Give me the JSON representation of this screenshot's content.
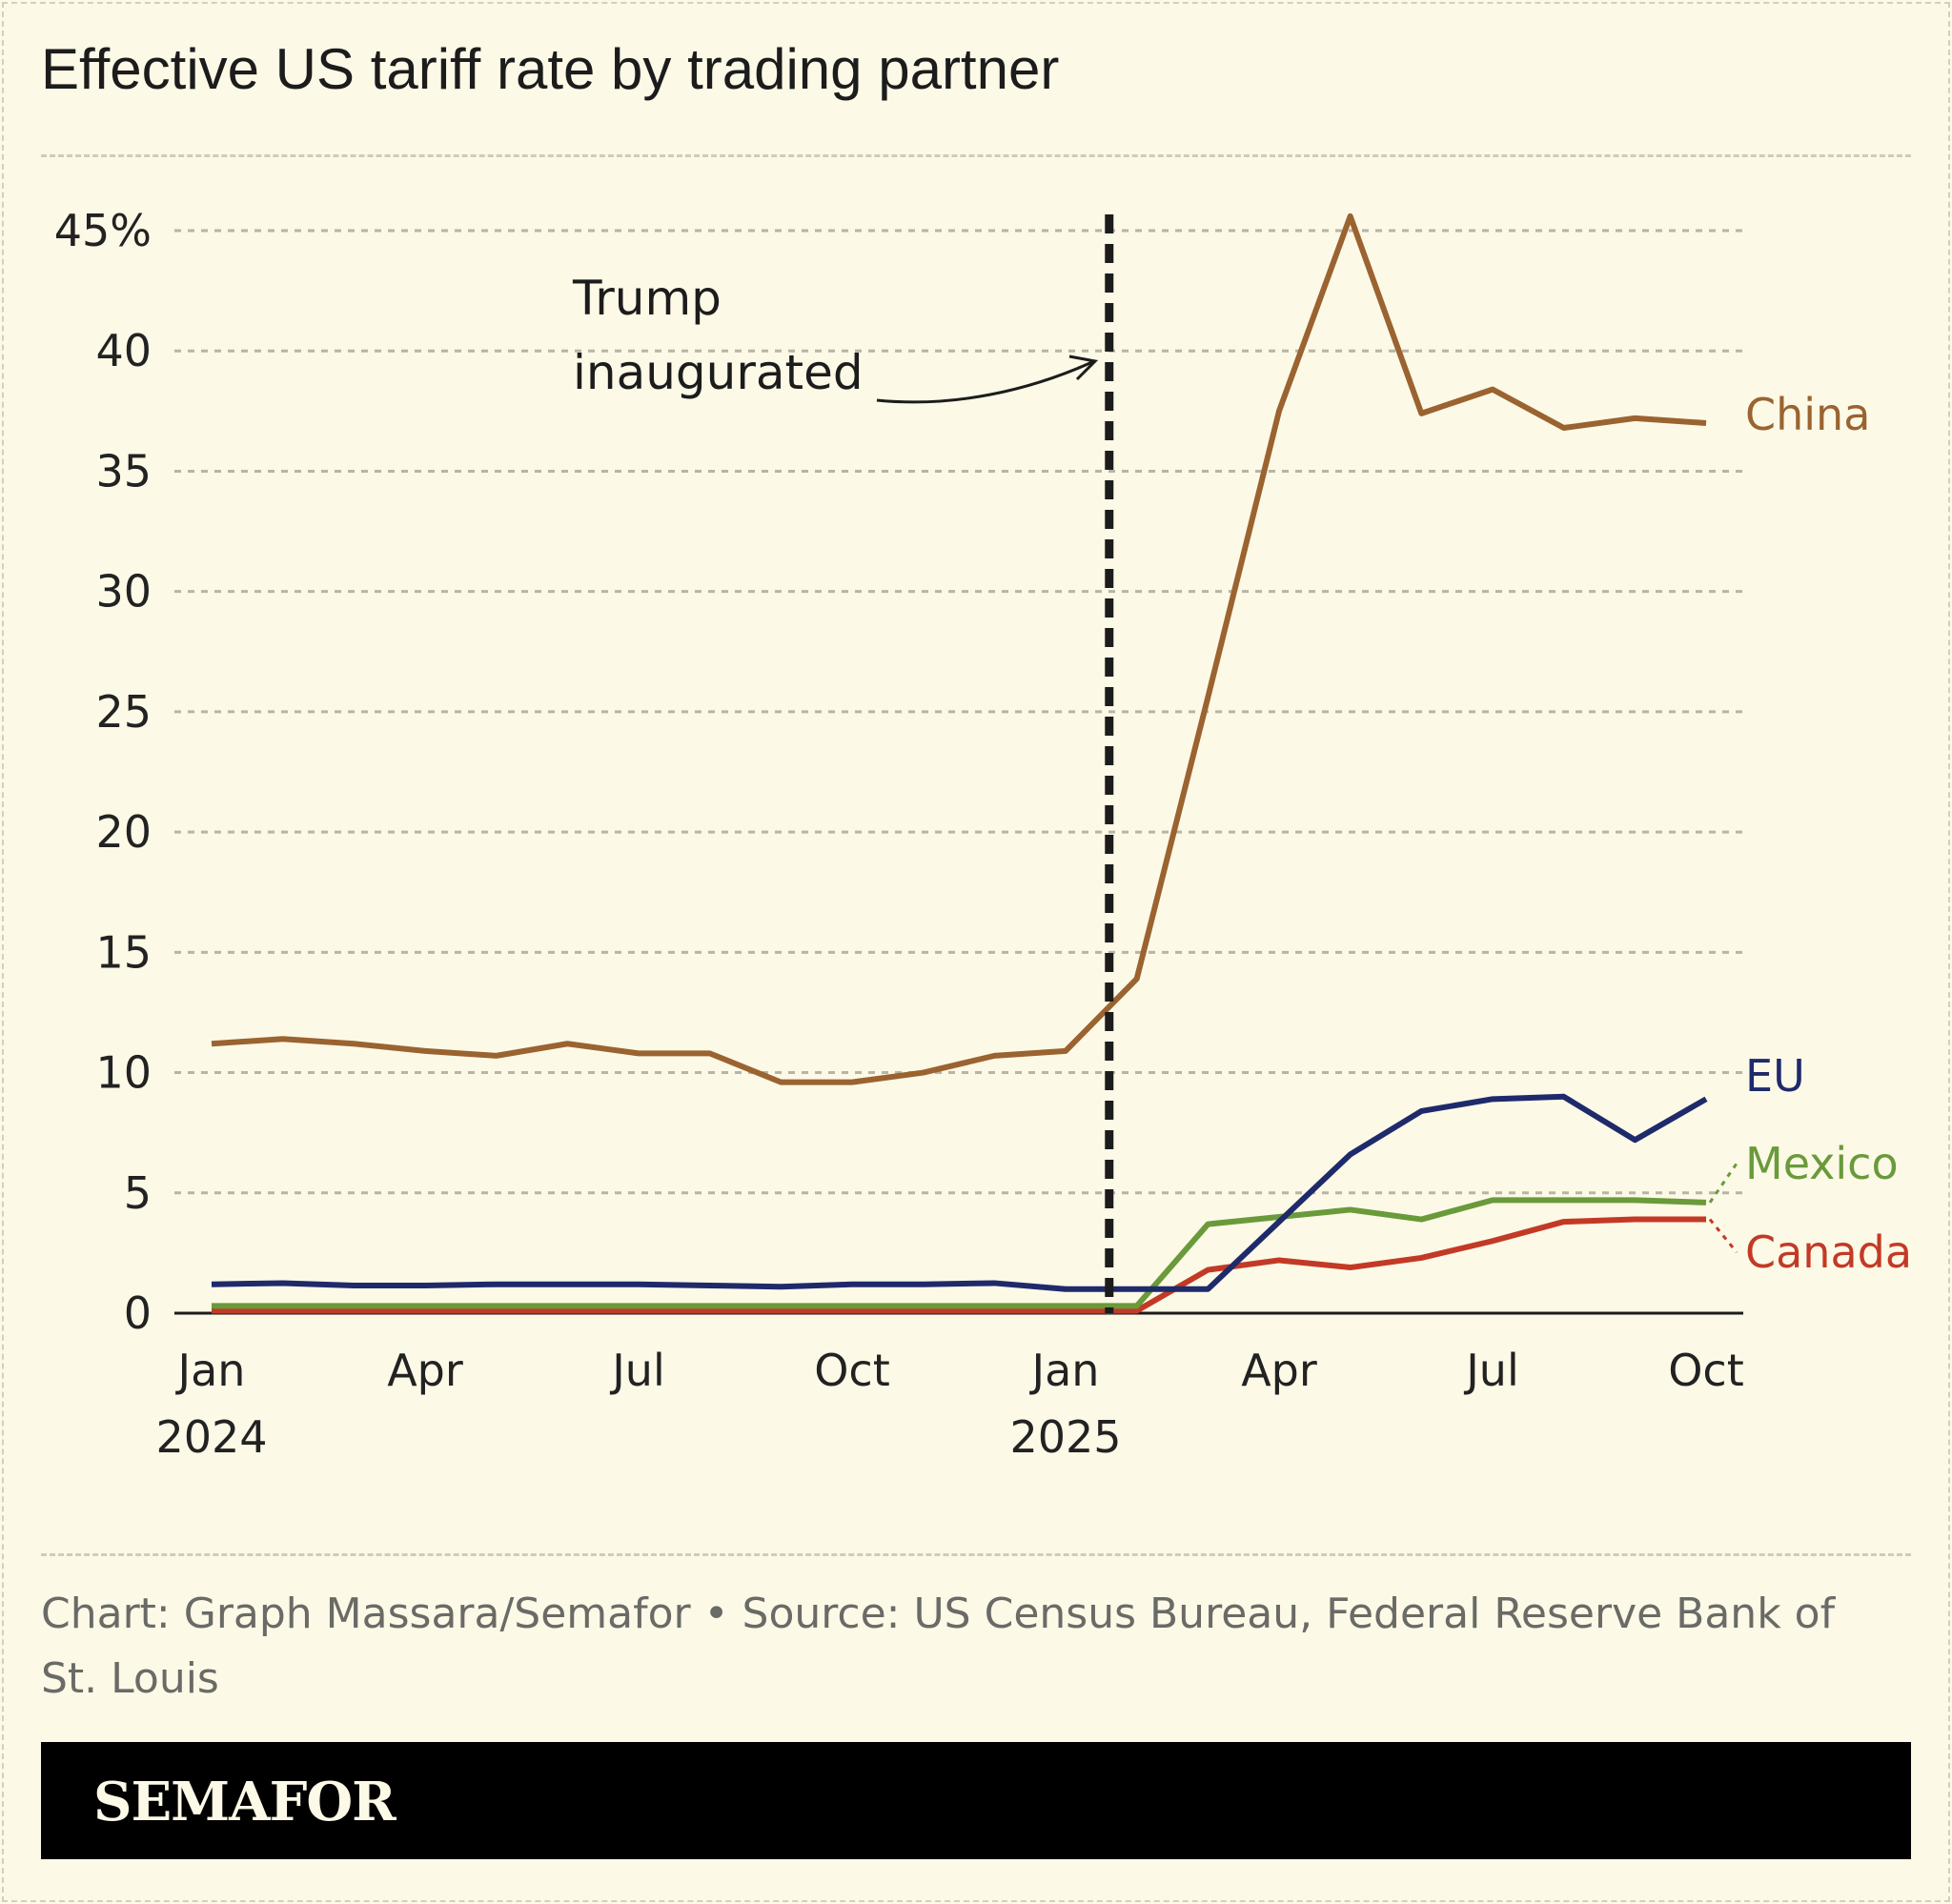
{
  "chart_data": {
    "type": "line",
    "title": "Effective US tariff rate by trading partner",
    "xlabel": "",
    "ylabel": "",
    "ylim": [
      0,
      45
    ],
    "yticks": [
      0,
      5,
      10,
      15,
      20,
      25,
      30,
      35,
      40,
      45
    ],
    "ytick_labels": [
      "0",
      "5",
      "10",
      "15",
      "20",
      "25",
      "30",
      "35",
      "40",
      "45%"
    ],
    "xticks": [
      {
        "month": 0,
        "label": "Jan",
        "sublabel": "2024"
      },
      {
        "month": 3,
        "label": "Apr",
        "sublabel": ""
      },
      {
        "month": 6,
        "label": "Jul",
        "sublabel": ""
      },
      {
        "month": 9,
        "label": "Oct",
        "sublabel": ""
      },
      {
        "month": 12,
        "label": "Jan",
        "sublabel": "2025"
      },
      {
        "month": 15,
        "label": "Apr",
        "sublabel": ""
      },
      {
        "month": 18,
        "label": "Jul",
        "sublabel": ""
      },
      {
        "month": 21,
        "label": "Oct",
        "sublabel": ""
      }
    ],
    "x": [
      "2024-01",
      "2024-02",
      "2024-03",
      "2024-04",
      "2024-05",
      "2024-06",
      "2024-07",
      "2024-08",
      "2024-09",
      "2024-10",
      "2024-11",
      "2024-12",
      "2025-01",
      "2025-02",
      "2025-03",
      "2025-04",
      "2025-05",
      "2025-06",
      "2025-07",
      "2025-08",
      "2025-09",
      "2025-10"
    ],
    "grid": true,
    "series": [
      {
        "name": "China",
        "color": "#9a6330",
        "values": [
          11.2,
          11.4,
          11.2,
          10.9,
          10.7,
          11.2,
          10.8,
          10.8,
          9.6,
          9.6,
          10.0,
          10.7,
          10.9,
          13.9,
          25.6,
          37.5,
          45.6,
          37.4,
          38.4,
          36.8,
          37.2,
          37.0
        ]
      },
      {
        "name": "EU",
        "color": "#1f2a6b",
        "values": [
          1.2,
          1.25,
          1.15,
          1.15,
          1.2,
          1.2,
          1.2,
          1.15,
          1.1,
          1.2,
          1.2,
          1.25,
          1.0,
          1.0,
          1.0,
          3.8,
          6.6,
          8.4,
          8.9,
          9.0,
          7.2,
          8.9
        ]
      },
      {
        "name": "Mexico",
        "color": "#6a9a3a",
        "values": [
          0.3,
          0.3,
          0.3,
          0.3,
          0.3,
          0.3,
          0.3,
          0.3,
          0.3,
          0.3,
          0.3,
          0.3,
          0.3,
          0.3,
          3.7,
          4.0,
          4.3,
          3.9,
          4.7,
          4.7,
          4.7,
          4.6
        ]
      },
      {
        "name": "Canada",
        "color": "#c23a26",
        "values": [
          0.1,
          0.1,
          0.1,
          0.1,
          0.1,
          0.1,
          0.1,
          0.1,
          0.1,
          0.1,
          0.1,
          0.1,
          0.1,
          0.1,
          1.8,
          2.2,
          1.9,
          2.3,
          3.0,
          3.8,
          3.9,
          3.9
        ]
      }
    ],
    "annotations": [
      {
        "text_line1": "Trump",
        "text_line2": "inaugurated",
        "date": "2025-01-20"
      }
    ],
    "legend": "inline-right"
  },
  "footer": {
    "source": "Chart: Graph Massara/Semafor • Source: US Census Bureau, Federal Reserve Bank of St. Louis",
    "brand": "SEMAFOR"
  }
}
